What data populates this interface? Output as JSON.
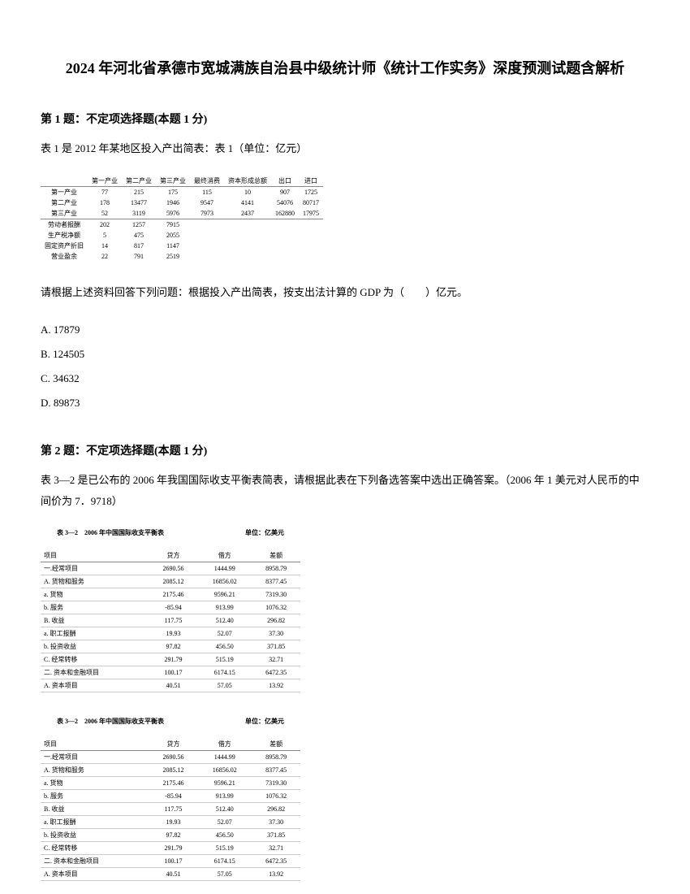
{
  "title": "2024 年河北省承德市宽城满族自治县中级统计师《统计工作实务》深度预测试题含解析",
  "q1": {
    "header": "第 1 题：不定项选择题(本题 1 分)",
    "intro": "表 1 是 2012 年某地区投入产出简表：表 1（单位：亿元）",
    "prompt": "请根据上述资料回答下列问题：根据投入产出简表，按支出法计算的 GDP 为（　　）亿元。",
    "options": {
      "a": "A. 17879",
      "b": "B. 124505",
      "c": "C. 34632",
      "d": "D. 89873"
    },
    "table": {
      "headers": [
        "",
        "第一产业",
        "第二产业",
        "第三产业",
        "最终消费",
        "资本形成总额",
        "出口",
        "进口"
      ],
      "rows": [
        [
          "第一产业",
          "77",
          "215",
          "175",
          "115",
          "10",
          "907",
          "1725"
        ],
        [
          "第二产业",
          "178",
          "13477",
          "1946",
          "9547",
          "4141",
          "54076",
          "80717"
        ],
        [
          "第三产业",
          "52",
          "3119",
          "5976",
          "7973",
          "2437",
          "162880",
          "17975"
        ]
      ],
      "rows2": [
        [
          "劳动者报酬",
          "202",
          "1257",
          "7915"
        ],
        [
          "生产税净额",
          "5",
          "475",
          "2055"
        ],
        [
          "固定资产折旧",
          "14",
          "817",
          "1147"
        ],
        [
          "营业盈余",
          "22",
          "791",
          "2519"
        ]
      ]
    }
  },
  "q2": {
    "header": "第 2 题：不定项选择题(本题 1 分)",
    "intro": "表 3—2 是已公布的 2006 年我国国际收支平衡表简表，请根据此表在下列备选答案中选出正确答案。（2006 年 1 美元对人民币的中间价为 7．9718）",
    "table_title_left": "表 3—2　2006 年中国国际收支平衡表",
    "table_title_right": "单位：亿美元",
    "table": {
      "headers": [
        "项目",
        "贷方",
        "借方",
        "差额"
      ],
      "rows": [
        [
          "一.经常项目",
          "2690.56",
          "1444.99",
          "8958.79"
        ],
        [
          "A. 货物和服务",
          "2085.12",
          "16856.02",
          "8377.45"
        ],
        [
          "a. 货物",
          "2175.46",
          "9596.21",
          "7319.30"
        ],
        [
          "b. 服务",
          "-85.94",
          "913.99",
          "1076.32"
        ],
        [
          "B. 收益",
          "117.75",
          "512.40",
          "296.82"
        ],
        [
          "a. 职工报酬",
          "19.93",
          "52.07",
          "37.30"
        ],
        [
          "b. 投资收益",
          "97.82",
          "456.50",
          "371.85"
        ],
        [
          "C. 经常转移",
          "291.79",
          "515.19",
          "32.71"
        ],
        [
          "二. 资本和金融项目",
          "100.17",
          "6174.15",
          "6472.35"
        ],
        [
          "A. 资本项目",
          "40.51",
          "57.05",
          "13.92"
        ]
      ]
    }
  }
}
